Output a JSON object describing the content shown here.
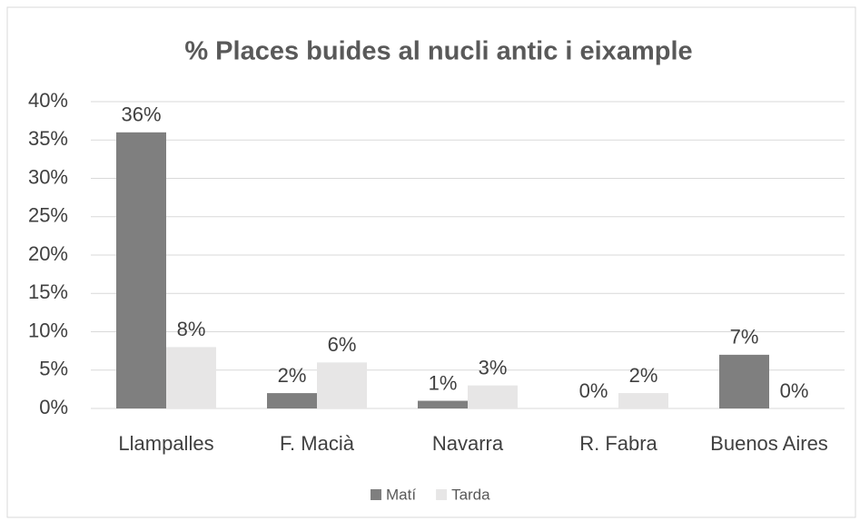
{
  "chart_data": {
    "type": "bar",
    "title": "% Places buides al nucli antic i eixample",
    "categories": [
      "Llampalles",
      "F. Macià",
      "Navarra",
      "R. Fabra",
      "Buenos Aires"
    ],
    "series": [
      {
        "name": "Matí",
        "color": "#7f7f7f",
        "values": [
          36,
          2,
          1,
          0,
          7
        ],
        "value_labels": [
          "36%",
          "2%",
          "1%",
          "0%",
          "7%"
        ]
      },
      {
        "name": "Tarda",
        "color": "#e7e6e6",
        "values": [
          8,
          6,
          3,
          2,
          0
        ],
        "value_labels": [
          "8%",
          "6%",
          "3%",
          "2%",
          "0%"
        ]
      }
    ],
    "ylim": [
      0,
      40
    ],
    "yticks": [
      {
        "value": 0,
        "label": "0%"
      },
      {
        "value": 5,
        "label": "5%"
      },
      {
        "value": 10,
        "label": "10%"
      },
      {
        "value": 15,
        "label": "15%"
      },
      {
        "value": 20,
        "label": "20%"
      },
      {
        "value": 25,
        "label": "25%"
      },
      {
        "value": 30,
        "label": "30%"
      },
      {
        "value": 35,
        "label": "35%"
      },
      {
        "value": 40,
        "label": "40%"
      }
    ],
    "grid": true,
    "legend": "bottom"
  }
}
